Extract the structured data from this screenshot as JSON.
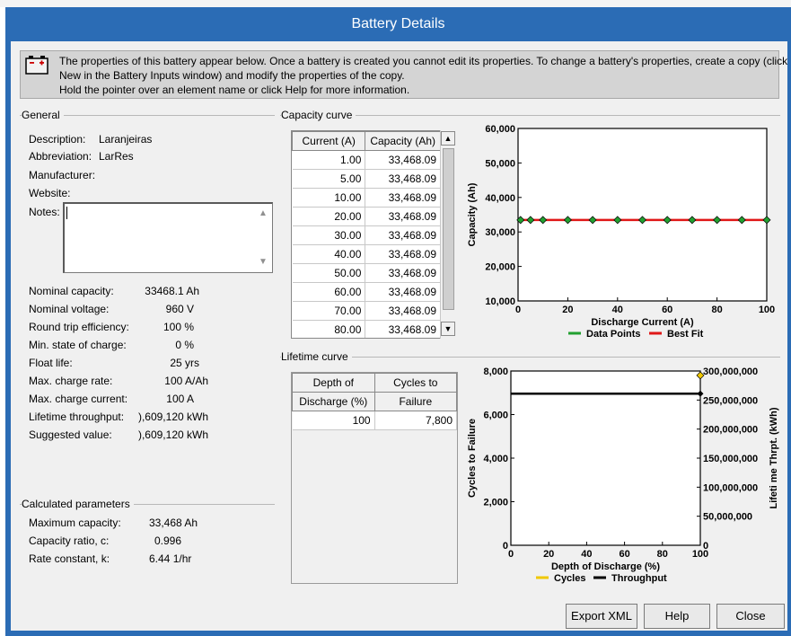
{
  "window": {
    "title": "Battery Details"
  },
  "info": {
    "line1": "The properties of this battery appear below.  Once a battery is created you cannot edit its properties. To change a battery's properties, create a copy (click",
    "line2": "New in the Battery Inputs window) and modify the properties of the copy.",
    "line3": "Hold the pointer over an element name or click Help for more information."
  },
  "general": {
    "title": "General",
    "description_label": "Description:",
    "description_value": "Laranjeiras",
    "abbreviation_label": "Abbreviation:",
    "abbreviation_value": "LarRes",
    "manufacturer_label": "Manufacturer:",
    "website_label": "Website:",
    "notes_label": "Notes:",
    "notes_value": "",
    "props": [
      {
        "label": "Nominal capacity:",
        "value": "33468.1 Ah"
      },
      {
        "label": "Nominal voltage:",
        "value": "960 V"
      },
      {
        "label": "Round trip efficiency:",
        "value": "100 %"
      },
      {
        "label": "Min. state of charge:",
        "value": "0 %"
      },
      {
        "label": "Float life:",
        "value": "25 yrs"
      },
      {
        "label": "Max. charge rate:",
        "value": "100 A/Ah"
      },
      {
        "label": "Max. charge current:",
        "value": "100 A"
      },
      {
        "label": "Lifetime throughput:",
        "value": "),609,120 kWh"
      },
      {
        "label": "Suggested value:",
        "value": "),609,120 kWh"
      }
    ]
  },
  "calculated": {
    "title": "Calculated parameters",
    "props": [
      {
        "label": "Maximum capacity:",
        "value": "33,468 Ah"
      },
      {
        "label": "Capacity ratio, c:",
        "value": "0.996"
      },
      {
        "label": "Rate constant, k:",
        "value": "6.44 1/hr"
      }
    ]
  },
  "capacity_curve": {
    "title": "Capacity curve",
    "columns": [
      "Current (A)",
      "Capacity (Ah)"
    ],
    "rows": [
      [
        "1.00",
        "33,468.09"
      ],
      [
        "5.00",
        "33,468.09"
      ],
      [
        "10.00",
        "33,468.09"
      ],
      [
        "20.00",
        "33,468.09"
      ],
      [
        "30.00",
        "33,468.09"
      ],
      [
        "40.00",
        "33,468.09"
      ],
      [
        "50.00",
        "33,468.09"
      ],
      [
        "60.00",
        "33,468.09"
      ],
      [
        "70.00",
        "33,468.09"
      ],
      [
        "80.00",
        "33,468.09"
      ]
    ]
  },
  "lifetime_curve": {
    "title": "Lifetime curve",
    "columns": [
      [
        "Depth of",
        "Discharge (%)"
      ],
      [
        "Cycles to",
        "Failure"
      ]
    ],
    "rows": [
      [
        "100",
        "7,800"
      ]
    ]
  },
  "chart_data": [
    {
      "type": "line",
      "xlabel": "Discharge Current (A)",
      "ylabel": "Capacity (Ah)",
      "xlim": [
        0,
        100
      ],
      "ylim": [
        10000,
        60000
      ],
      "xticks": [
        "0",
        "20",
        "40",
        "60",
        "80",
        "100"
      ],
      "yticks": [
        "10,000",
        "20,000",
        "30,000",
        "40,000",
        "50,000",
        "60,000"
      ],
      "legend_placement": "bottom",
      "series": [
        {
          "name": "Data Points",
          "color": "#22a030",
          "x": [
            1,
            5,
            10,
            20,
            30,
            40,
            50,
            60,
            70,
            80,
            90,
            100
          ],
          "y": [
            33468,
            33468,
            33468,
            33468,
            33468,
            33468,
            33468,
            33468,
            33468,
            33468,
            33468,
            33468
          ]
        },
        {
          "name": "Best Fit",
          "color": "#e01818",
          "x": [
            0,
            100
          ],
          "y": [
            33468,
            33468
          ]
        }
      ]
    },
    {
      "type": "line",
      "xlabel": "Depth of Discharge (%)",
      "ylabel": "Cycles to Failure",
      "y2label": "Lifeti me Thrpt. (kWh)",
      "xlim": [
        0,
        100
      ],
      "ylim": [
        0,
        8000
      ],
      "y2lim": [
        0,
        300000000
      ],
      "xticks": [
        "0",
        "20",
        "40",
        "60",
        "80",
        "100"
      ],
      "yticks": [
        "0",
        "2,000",
        "4,000",
        "6,000",
        "8,000"
      ],
      "y2ticks": [
        "0",
        "50,000,000",
        "100,000,000",
        "150,000,000",
        "200,000,000",
        "250,000,000",
        "300,000,000"
      ],
      "legend_placement": "bottom",
      "series": [
        {
          "name": "Cycles",
          "color": "#f0c800",
          "axis": "left",
          "x": [
            100
          ],
          "y": [
            7800
          ]
        },
        {
          "name": "Throughput",
          "color": "#000000",
          "axis": "right",
          "x": [
            0,
            100
          ],
          "y": [
            261000000,
            261000000
          ]
        }
      ]
    }
  ],
  "buttons": {
    "export": "Export XML",
    "help": "Help",
    "close": "Close"
  }
}
